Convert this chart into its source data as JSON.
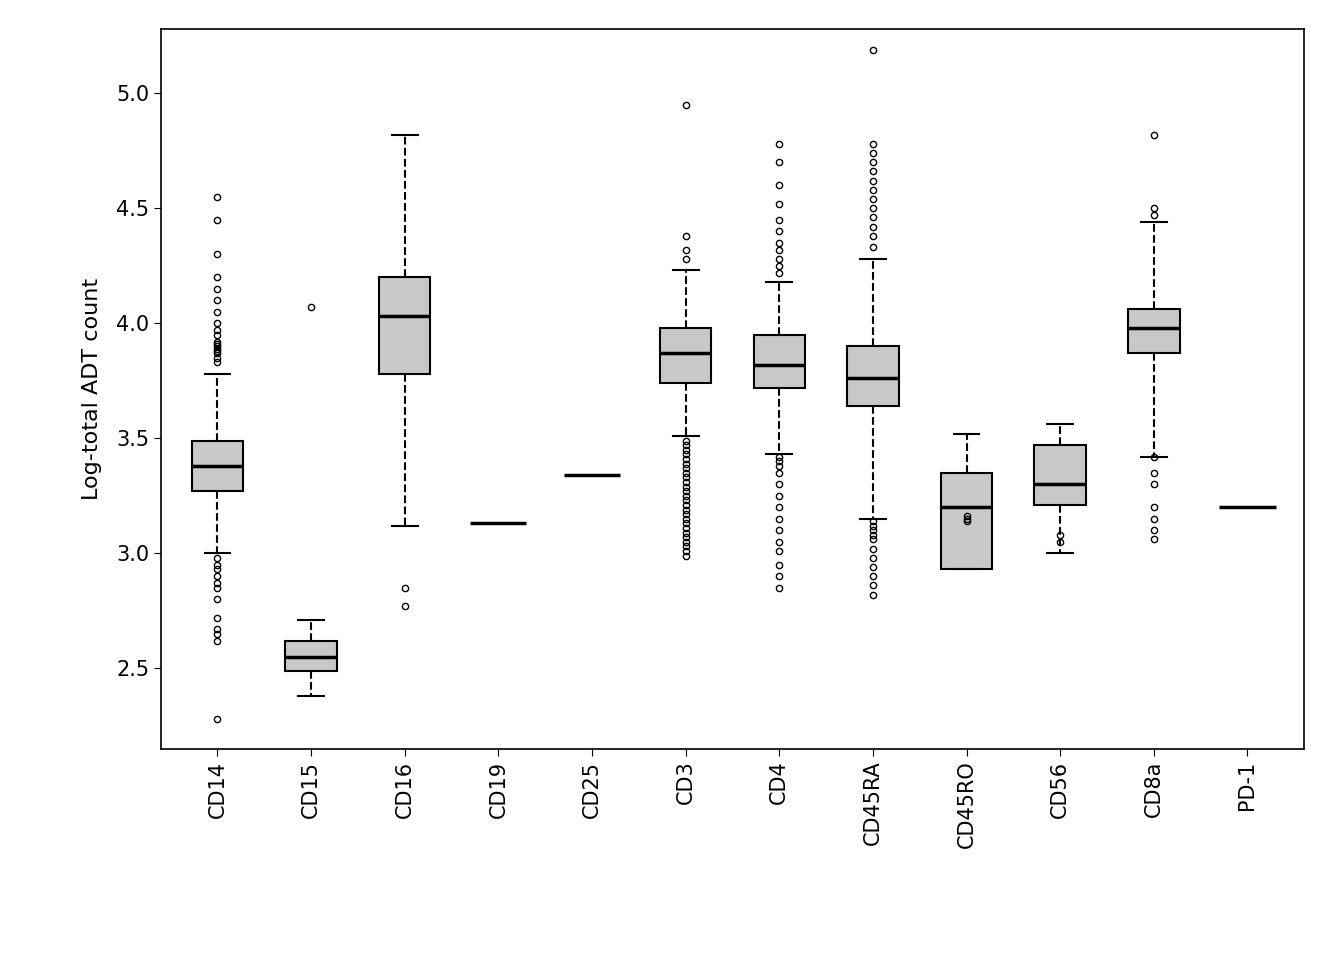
{
  "categories": [
    "CD14",
    "CD15",
    "CD16",
    "CD19",
    "CD25",
    "CD3",
    "CD4",
    "CD45RA",
    "CD45RO",
    "CD56",
    "CD8a",
    "PD-1"
  ],
  "ylabel": "Log-total ADT count",
  "ylim": [
    2.15,
    5.28
  ],
  "yticks": [
    2.5,
    3.0,
    3.5,
    4.0,
    4.5,
    5.0
  ],
  "box_fill": "#c8c8c8",
  "box_edge": "#000000",
  "median_color": "#000000",
  "whisker_color": "#000000",
  "flier_color": "#000000",
  "background": "#ffffff",
  "boxes": {
    "CD14": {
      "q1": 3.27,
      "median": 3.38,
      "q3": 3.49,
      "whislo": 3.0,
      "whishi": 3.78,
      "fliers": [
        3.83,
        3.85,
        3.87,
        3.88,
        3.89,
        3.9,
        3.91,
        3.92,
        3.95,
        3.97,
        4.0,
        4.05,
        4.1,
        4.15,
        4.2,
        4.3,
        4.45,
        4.55,
        2.28,
        2.62,
        2.65,
        2.67,
        2.72,
        2.8,
        2.85,
        2.87,
        2.9,
        2.93,
        2.95,
        2.98
      ]
    },
    "CD15": {
      "q1": 2.49,
      "median": 2.55,
      "q3": 2.62,
      "whislo": 2.38,
      "whishi": 2.71,
      "fliers": [
        4.07
      ]
    },
    "CD16": {
      "q1": 3.78,
      "median": 4.03,
      "q3": 4.2,
      "whislo": 3.12,
      "whishi": 4.82,
      "fliers": [
        2.77,
        2.85
      ]
    },
    "CD19": {
      "q1": null,
      "median": 3.13,
      "q3": null,
      "whislo": null,
      "whishi": null,
      "fliers": [],
      "degenerate": true
    },
    "CD25": {
      "q1": null,
      "median": 3.34,
      "q3": null,
      "whislo": null,
      "whishi": null,
      "fliers": [],
      "degenerate": true
    },
    "CD3": {
      "q1": 3.74,
      "median": 3.87,
      "q3": 3.98,
      "whislo": 3.51,
      "whishi": 4.23,
      "fliers": [
        4.28,
        4.32,
        4.38,
        4.95,
        2.99,
        3.01,
        3.03,
        3.05,
        3.07,
        3.09,
        3.11,
        3.13,
        3.15,
        3.17,
        3.19,
        3.21,
        3.23,
        3.25,
        3.27,
        3.29,
        3.31,
        3.33,
        3.35,
        3.37,
        3.39,
        3.41,
        3.43,
        3.45,
        3.47,
        3.49
      ]
    },
    "CD4": {
      "q1": 3.72,
      "median": 3.82,
      "q3": 3.95,
      "whislo": 3.43,
      "whishi": 4.18,
      "fliers": [
        4.22,
        4.25,
        4.28,
        4.32,
        4.35,
        4.4,
        4.45,
        4.52,
        4.6,
        4.7,
        4.78,
        2.85,
        2.9,
        2.95,
        3.01,
        3.05,
        3.1,
        3.15,
        3.2,
        3.25,
        3.3,
        3.35,
        3.38,
        3.4,
        3.42
      ]
    },
    "CD45RA": {
      "q1": 3.64,
      "median": 3.76,
      "q3": 3.9,
      "whislo": 3.15,
      "whishi": 4.28,
      "fliers": [
        4.33,
        4.38,
        4.42,
        4.46,
        4.5,
        4.54,
        4.58,
        4.62,
        4.66,
        4.7,
        4.74,
        4.78,
        5.19,
        2.82,
        2.86,
        2.9,
        2.94,
        2.98,
        3.02,
        3.06,
        3.08,
        3.1,
        3.12,
        3.14
      ]
    },
    "CD45RO": {
      "q1": 2.93,
      "median": 3.2,
      "q3": 3.35,
      "whislo": 2.93,
      "whishi": 3.52,
      "fliers": [
        3.14,
        3.15,
        3.16
      ]
    },
    "CD56": {
      "q1": 3.21,
      "median": 3.3,
      "q3": 3.47,
      "whislo": 3.0,
      "whishi": 3.56,
      "fliers": [
        3.05,
        3.08
      ]
    },
    "CD8a": {
      "q1": 3.87,
      "median": 3.98,
      "q3": 4.06,
      "whislo": 3.42,
      "whishi": 4.44,
      "fliers": [
        4.47,
        4.5,
        4.82,
        3.06,
        3.1,
        3.15,
        3.2,
        3.3,
        3.35,
        3.42
      ]
    },
    "PD-1": {
      "q1": null,
      "median": 3.2,
      "q3": null,
      "whislo": null,
      "whishi": null,
      "fliers": [],
      "degenerate": true
    }
  }
}
